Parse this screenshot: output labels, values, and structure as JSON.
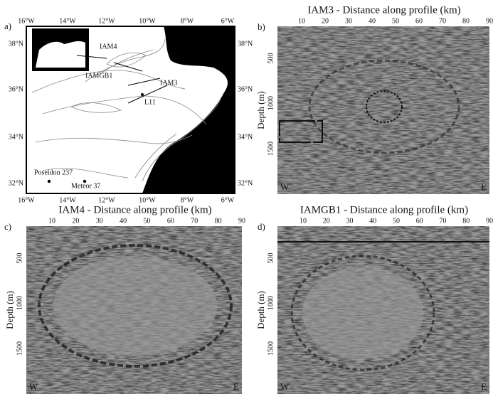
{
  "panels": [
    {
      "label": "a)",
      "lon_ticks": [
        "16°W",
        "14°W",
        "12°W",
        "10°W",
        "8°W",
        "6°W"
      ],
      "lat_ticks": [
        "38°N",
        "36°N",
        "34°N",
        "32°N"
      ],
      "places": [
        "IAM4",
        "IAM3",
        "IAMGB1",
        "L11",
        "Poseidon 237",
        "Meteor 37"
      ]
    },
    {
      "label": "b)",
      "title": "IAM3 - Distance along profile (km)",
      "xticks": [
        10,
        20,
        30,
        40,
        50,
        60,
        70,
        80,
        90
      ],
      "ylabel": "Depth (m)",
      "yticks": [
        500,
        1000,
        1500
      ],
      "west": "W",
      "east": "E"
    },
    {
      "label": "c)",
      "title": "IAM4 - Distance along profile (km)",
      "xticks": [
        10,
        20,
        30,
        40,
        50,
        60,
        70,
        80,
        90
      ],
      "ylabel": "Depth (m)",
      "yticks": [
        500,
        1000,
        1500
      ],
      "west": "W",
      "east": "E"
    },
    {
      "label": "d)",
      "title": "IAMGB1 - Distance along profile (km)",
      "xticks": [
        10,
        20,
        30,
        40,
        50,
        60,
        70,
        80,
        90
      ],
      "ylabel": "Depth (m)",
      "yticks": [
        500,
        1000,
        1500
      ],
      "west": "W",
      "east": "E"
    }
  ]
}
